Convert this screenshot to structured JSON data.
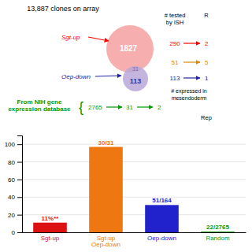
{
  "chart_data": {
    "type": "bar",
    "title": "13,887 clones on array",
    "categories": [
      "Sgt-up",
      "Sgt-up\nOep-down",
      "Oep-down",
      "Random"
    ],
    "values": [
      11,
      97,
      31,
      0.8
    ],
    "value_labels": [
      "11%**",
      "30/31",
      "51/164",
      "22/2765"
    ],
    "colors": [
      "#DD1111",
      "#EE7711",
      "#2222CC",
      "#009900"
    ],
    "ylim": [
      0,
      110
    ],
    "yticks": [
      0,
      20,
      40,
      60,
      80,
      100
    ],
    "grid": true,
    "data_labels": true,
    "annotations": [
      {
        "text": "Sgt-up",
        "color": "#FF0000"
      },
      {
        "text": "Oep-down",
        "color": "#2222AA"
      },
      {
        "text": "1827",
        "color": "#FFFFFF"
      },
      {
        "text": "113",
        "color": "#3333AA"
      },
      {
        "text": "31",
        "color": "#8866AA"
      },
      {
        "text": "# tested",
        "color": "#000000"
      },
      {
        "text": "by ISH",
        "color": "#000000"
      },
      {
        "text": "R",
        "color": "#000000"
      },
      {
        "text": "290",
        "color": "#FF0000"
      },
      {
        "text": "2",
        "color": "#FF0000"
      },
      {
        "text": "51",
        "color": "#DD8800"
      },
      {
        "text": "5",
        "color": "#DD8800"
      },
      {
        "text": "113",
        "color": "#2222AA"
      },
      {
        "text": "1",
        "color": "#2222AA"
      },
      {
        "text": "# expressed in",
        "color": "#000000"
      },
      {
        "text": "mesendoderm",
        "color": "#000000"
      },
      {
        "text": "From NIH gene",
        "color": "#009900"
      },
      {
        "text": "expression database",
        "color": "#009900"
      },
      {
        "text": "{",
        "color": "#009900"
      },
      {
        "text": "2765",
        "color": "#009900"
      },
      {
        "text": "31",
        "color": "#009900"
      },
      {
        "text": "2",
        "color": "#009900"
      },
      {
        "text": "Rep",
        "color": "#000000"
      }
    ]
  }
}
